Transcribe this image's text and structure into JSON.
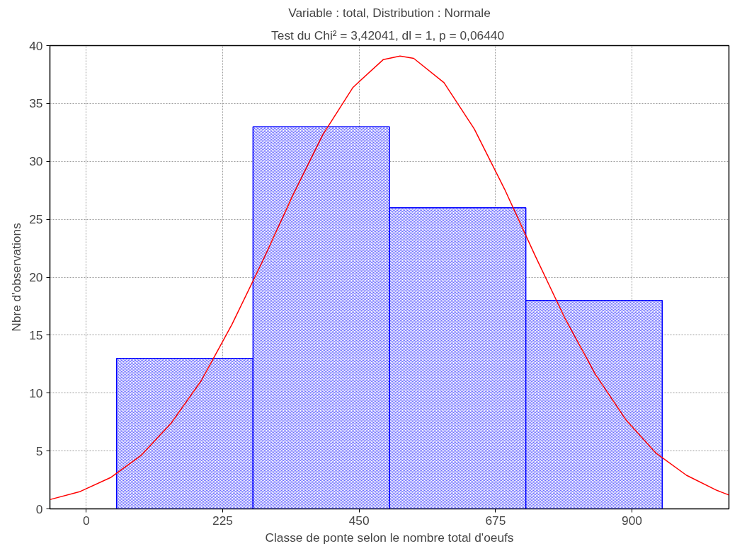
{
  "chart_data": {
    "type": "histogram",
    "title": "Variable : total, Distribution : Normale",
    "subtitle": "Test du Chi² =  3,42041, dl = 1, p = 0,06440",
    "xlabel": "Classe de ponte selon le nombre total d'oeufs",
    "ylabel": "Nbre d'observations",
    "bins": [
      50,
      275,
      500,
      725,
      950
    ],
    "values": [
      13,
      33,
      26,
      18
    ],
    "color": "#0000ff",
    "series": [
      {
        "type": "line",
        "color": "#ff0000",
        "x": [
          -60,
          -10,
          40,
          90,
          140,
          190,
          240,
          290,
          340,
          390,
          440,
          490,
          517.5,
          540,
          590,
          640,
          690,
          740,
          790,
          840,
          890,
          940,
          990,
          1040,
          1060
        ],
        "values": [
          0.8,
          1.5,
          2.7,
          4.6,
          7.4,
          11.1,
          15.9,
          21.3,
          27.0,
          32.3,
          36.4,
          38.8,
          39.1,
          38.9,
          36.8,
          32.8,
          27.6,
          21.9,
          16.4,
          11.6,
          7.7,
          4.8,
          2.9,
          1.6,
          1.2
        ]
      }
    ],
    "xlim": [
      -60,
      1060
    ],
    "ylim": [
      0,
      40
    ],
    "xticks": [
      0,
      225,
      450,
      675,
      900
    ],
    "yticks": [
      0,
      5,
      10,
      15,
      20,
      25,
      30,
      35,
      40
    ],
    "grid": true
  }
}
